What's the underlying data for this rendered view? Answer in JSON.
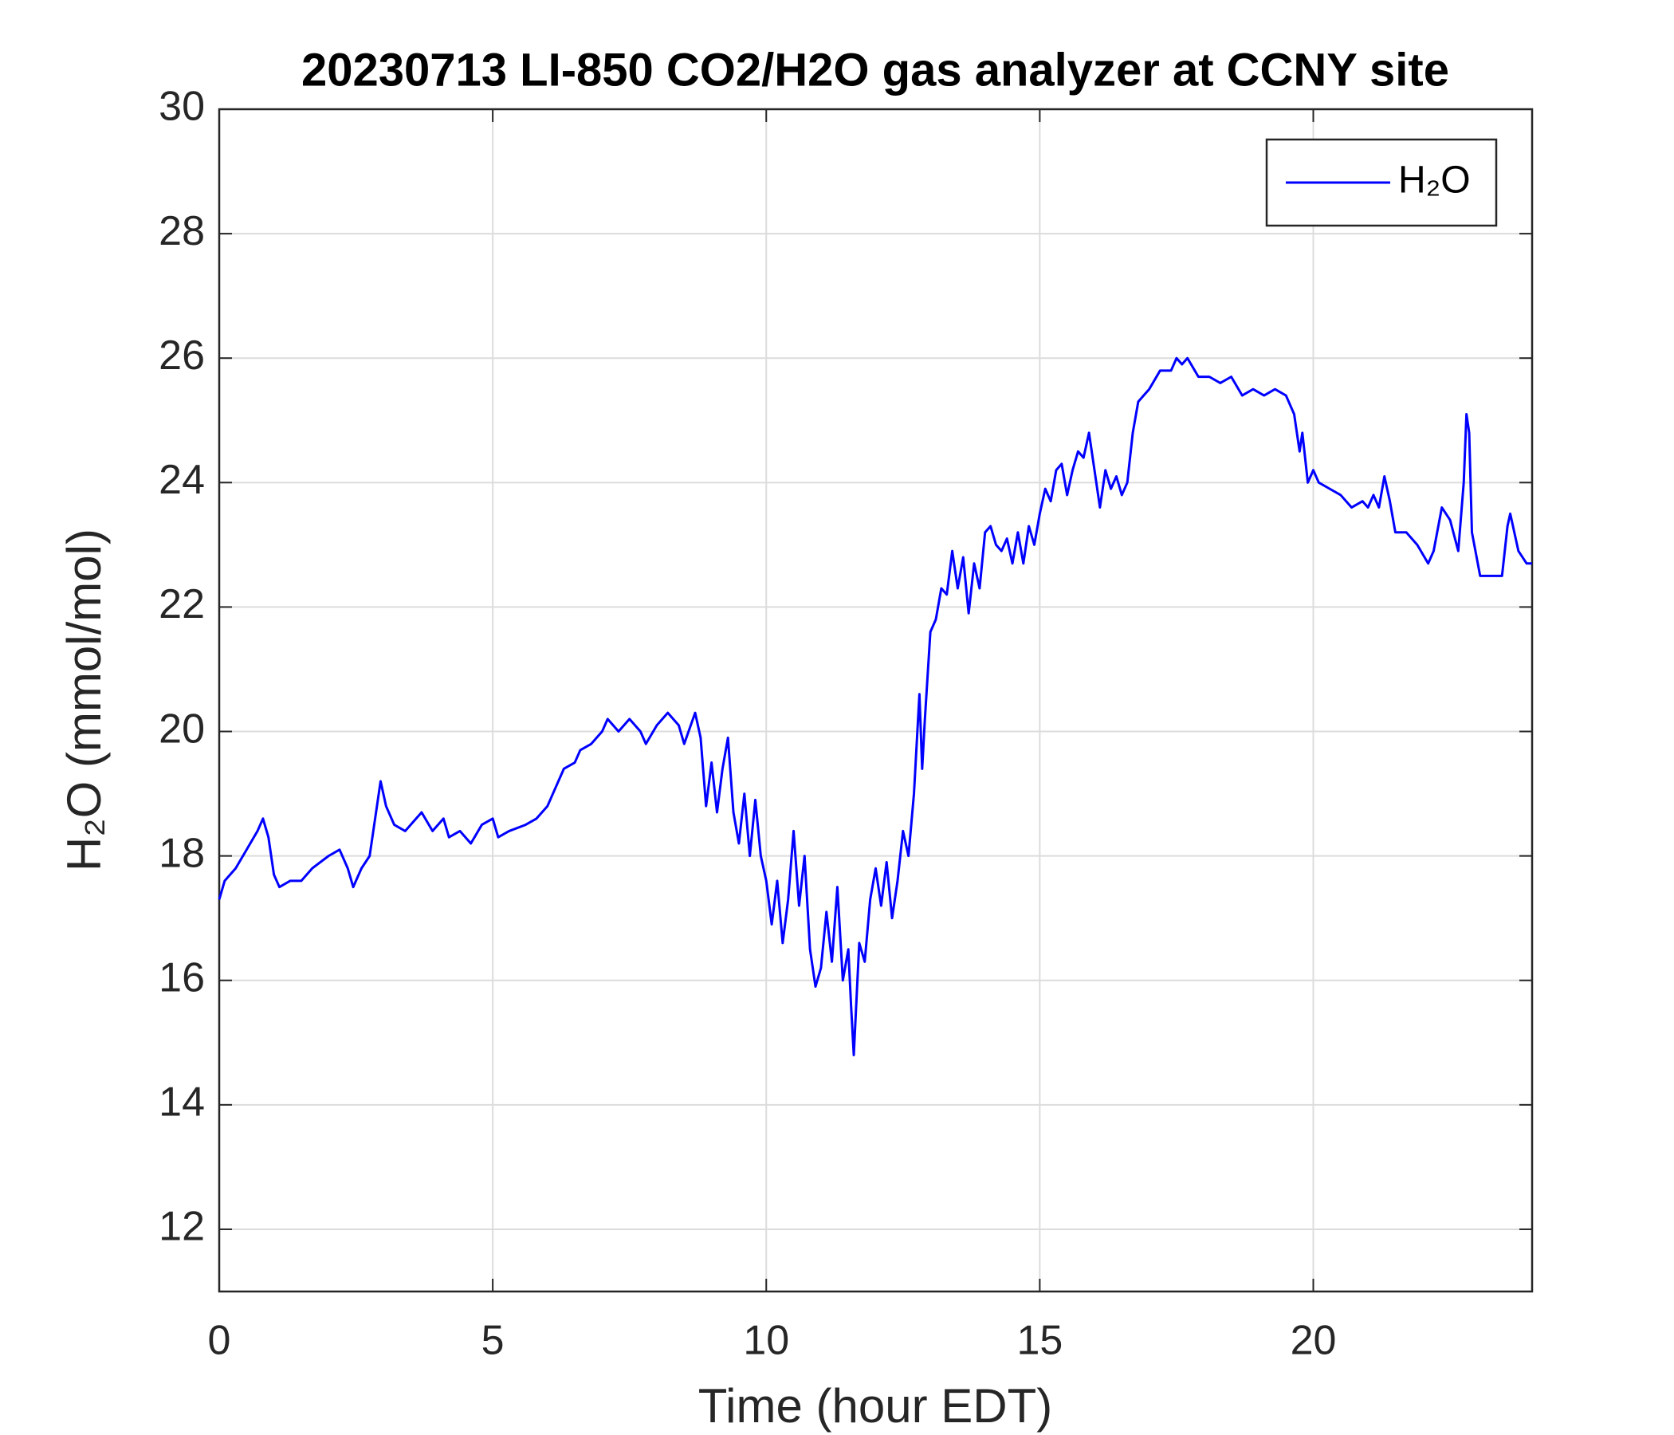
{
  "chart_data": {
    "type": "line",
    "title": "20230713 LI-850 CO2/H2O gas analyzer at CCNY site",
    "xlabel": "Time (hour EDT)",
    "ylabel": "H₂O (mmol/mol)",
    "x": [
      0,
      0.1,
      0.3,
      0.5,
      0.7,
      0.8,
      0.9,
      1.0,
      1.1,
      1.3,
      1.5,
      1.7,
      2.0,
      2.2,
      2.35,
      2.45,
      2.6,
      2.75,
      2.85,
      2.95,
      3.05,
      3.2,
      3.4,
      3.6,
      3.7,
      3.9,
      4.1,
      4.2,
      4.4,
      4.6,
      4.8,
      5.0,
      5.1,
      5.3,
      5.6,
      5.8,
      6.0,
      6.1,
      6.3,
      6.5,
      6.6,
      6.8,
      7.0,
      7.1,
      7.3,
      7.5,
      7.7,
      7.8,
      8.0,
      8.2,
      8.4,
      8.5,
      8.7,
      8.8,
      8.9,
      9.0,
      9.1,
      9.2,
      9.3,
      9.4,
      9.5,
      9.6,
      9.7,
      9.8,
      9.9,
      10.0,
      10.1,
      10.2,
      10.3,
      10.4,
      10.5,
      10.6,
      10.7,
      10.8,
      10.9,
      11.0,
      11.1,
      11.2,
      11.3,
      11.4,
      11.5,
      11.55,
      11.6,
      11.7,
      11.8,
      11.9,
      12.0,
      12.1,
      12.2,
      12.3,
      12.4,
      12.5,
      12.6,
      12.7,
      12.8,
      12.85,
      12.9,
      13.0,
      13.1,
      13.2,
      13.3,
      13.4,
      13.5,
      13.6,
      13.7,
      13.8,
      13.9,
      14.0,
      14.1,
      14.2,
      14.3,
      14.4,
      14.5,
      14.6,
      14.7,
      14.8,
      14.9,
      15.0,
      15.1,
      15.2,
      15.3,
      15.4,
      15.5,
      15.6,
      15.7,
      15.8,
      15.9,
      16.0,
      16.1,
      16.2,
      16.3,
      16.4,
      16.5,
      16.6,
      16.7,
      16.8,
      16.9,
      17.0,
      17.2,
      17.4,
      17.5,
      17.6,
      17.7,
      17.9,
      18.1,
      18.3,
      18.5,
      18.7,
      18.9,
      19.1,
      19.3,
      19.5,
      19.65,
      19.75,
      19.8,
      19.9,
      20.0,
      20.1,
      20.3,
      20.5,
      20.7,
      20.9,
      21.0,
      21.1,
      21.2,
      21.3,
      21.4,
      21.5,
      21.7,
      21.9,
      22.1,
      22.2,
      22.35,
      22.5,
      22.65,
      22.75,
      22.8,
      22.85,
      22.9,
      23.05,
      23.45,
      23.55,
      23.6,
      23.75,
      23.9,
      24.0
    ],
    "series": [
      {
        "name": "H₂O",
        "color": "#0000ff",
        "values": [
          17.3,
          17.6,
          17.8,
          18.1,
          18.4,
          18.6,
          18.3,
          17.7,
          17.5,
          17.6,
          17.6,
          17.8,
          18.0,
          18.1,
          17.8,
          17.5,
          17.8,
          18.0,
          18.6,
          19.2,
          18.8,
          18.5,
          18.4,
          18.6,
          18.7,
          18.4,
          18.6,
          18.3,
          18.4,
          18.2,
          18.5,
          18.6,
          18.3,
          18.4,
          18.5,
          18.6,
          18.8,
          19.0,
          19.4,
          19.5,
          19.7,
          19.8,
          20.0,
          20.2,
          20.0,
          20.2,
          20.0,
          19.8,
          20.1,
          20.3,
          20.1,
          19.8,
          20.3,
          19.9,
          18.8,
          19.5,
          18.7,
          19.4,
          19.9,
          18.7,
          18.2,
          19.0,
          18.0,
          18.9,
          18.0,
          17.6,
          16.9,
          17.6,
          16.6,
          17.3,
          18.4,
          17.2,
          18.0,
          16.5,
          15.9,
          16.2,
          17.1,
          16.3,
          17.5,
          16.0,
          16.5,
          15.6,
          14.8,
          16.6,
          16.3,
          17.3,
          17.8,
          17.2,
          17.9,
          17.0,
          17.6,
          18.4,
          18.0,
          19.0,
          20.6,
          19.4,
          20.2,
          21.6,
          21.8,
          22.3,
          22.2,
          22.9,
          22.3,
          22.8,
          21.9,
          22.7,
          22.3,
          23.2,
          23.3,
          23.0,
          22.9,
          23.1,
          22.7,
          23.2,
          22.7,
          23.3,
          23.0,
          23.5,
          23.9,
          23.7,
          24.2,
          24.3,
          23.8,
          24.2,
          24.5,
          24.4,
          24.8,
          24.2,
          23.6,
          24.2,
          23.9,
          24.1,
          23.8,
          24.0,
          24.8,
          25.3,
          25.4,
          25.5,
          25.8,
          25.8,
          26.0,
          25.9,
          26.0,
          25.7,
          25.7,
          25.6,
          25.7,
          25.4,
          25.5,
          25.4,
          25.5,
          25.4,
          25.1,
          24.5,
          24.8,
          24.0,
          24.2,
          24.0,
          23.9,
          23.8,
          23.6,
          23.7,
          23.6,
          23.8,
          23.6,
          24.1,
          23.7,
          23.2,
          23.2,
          23.0,
          22.7,
          22.9,
          23.6,
          23.4,
          22.9,
          24.0,
          25.1,
          24.8,
          23.2,
          22.5,
          22.5,
          23.3,
          23.5,
          22.9,
          22.7,
          22.7
        ]
      }
    ],
    "xlim": [
      0,
      24
    ],
    "xticks": [
      0,
      5,
      10,
      15,
      20
    ],
    "ylim": [
      11,
      30
    ],
    "yticks": [
      12,
      14,
      16,
      18,
      20,
      22,
      24,
      26,
      28,
      30
    ],
    "grid": true,
    "legend": "upper right"
  }
}
